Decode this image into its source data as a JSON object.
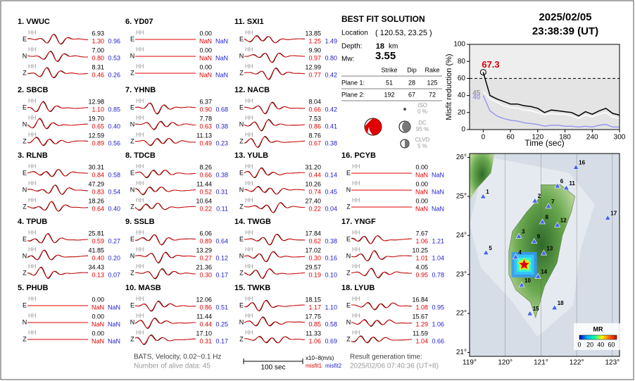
{
  "header": {
    "date": "2025/02/05",
    "time": "23:38:39  (UT)"
  },
  "channel": "HH",
  "components": [
    "E",
    "N",
    "Z"
  ],
  "stations": [
    {
      "title": "1.  VWUC",
      "rows": [
        [
          "6.93",
          "1.30",
          "0.96"
        ],
        [
          "7.00",
          "0.80",
          "0.53"
        ],
        [
          "8.31",
          "0.46",
          "0.26"
        ]
      ]
    },
    {
      "title": "2.  SBCB",
      "rows": [
        [
          "12.98",
          "1.10",
          "0.85"
        ],
        [
          "19.70",
          "0.65",
          "0.40"
        ],
        [
          "12.59",
          "0.89",
          "0.56"
        ]
      ]
    },
    {
      "title": "3.  RLNB",
      "rows": [
        [
          "30.31",
          "0.84",
          "0.58"
        ],
        [
          "47.29",
          "0.83",
          "0.54"
        ],
        [
          "18.26",
          "0.64",
          "0.40"
        ]
      ]
    },
    {
      "title": "4.  TPUB",
      "rows": [
        [
          "25.81",
          "0.59",
          "0.27"
        ],
        [
          "41.85",
          "0.40",
          "0.20"
        ],
        [
          "34.43",
          "0.13",
          "0.07"
        ]
      ]
    },
    {
      "title": "5.  PHUB",
      "rows": [
        [
          "0.00",
          "NaN",
          "NaN"
        ],
        [
          "0.00",
          "NaN",
          "NaN"
        ],
        [
          "0.00",
          "NaN",
          "NaN"
        ]
      ]
    },
    {
      "title": "6.  YD07",
      "rows": [
        [
          "0.00",
          "NaN",
          "NaN"
        ],
        [
          "0.00",
          "NaN",
          "NaN"
        ],
        [
          "0.00",
          "NaN",
          "NaN"
        ]
      ]
    },
    {
      "title": "7.  YHNB",
      "rows": [
        [
          "6.37",
          "0.90",
          "0.68"
        ],
        [
          "7.78",
          "0.63",
          "0.38"
        ],
        [
          "11.13",
          "0.49",
          "0.23"
        ]
      ]
    },
    {
      "title": "8.  TDCB",
      "rows": [
        [
          "8.26",
          "0.66",
          "0.38"
        ],
        [
          "11.44",
          "0.52",
          "0.31"
        ],
        [
          "10.64",
          "0.22",
          "0.11"
        ]
      ]
    },
    {
      "title": "9.  SSLB",
      "rows": [
        [
          "6.06",
          "0.89",
          "0.64"
        ],
        [
          "13.29",
          "0.27",
          "0.12"
        ],
        [
          "21.36",
          "0.30",
          "0.17"
        ]
      ]
    },
    {
      "title": "10. MASB",
      "rows": [
        [
          "12.06",
          "0.86",
          "0.51"
        ],
        [
          "11.44",
          "0.44",
          "0.25"
        ],
        [
          "17.10",
          "0.31",
          "0.17"
        ]
      ]
    },
    {
      "title": "11. SXI1",
      "rows": [
        [
          "13.85",
          "1.25",
          "1.49"
        ],
        [
          "9.90",
          "0.97",
          "0.80"
        ],
        [
          "12.99",
          "0.77",
          "0.42"
        ]
      ]
    },
    {
      "title": "12. NACB",
      "rows": [
        [
          "8.04",
          "0.66",
          "0.42"
        ],
        [
          "7.53",
          "0.86",
          "0.41"
        ],
        [
          "8.76",
          "0.67",
          "0.38"
        ]
      ]
    },
    {
      "title": "13. YULB",
      "rows": [
        [
          "31.20",
          "0.44",
          "0.14"
        ],
        [
          "10.26",
          "0.74",
          "0.45"
        ],
        [
          "27.40",
          "0.22",
          "0.04"
        ]
      ]
    },
    {
      "title": "14. TWGB",
      "rows": [
        [
          "17.84",
          "0.62",
          "0.38"
        ],
        [
          "17.02",
          "0.30",
          "0.16"
        ],
        [
          "29.57",
          "0.19",
          "0.10"
        ]
      ]
    },
    {
      "title": "15. TWKB",
      "rows": [
        [
          "18.15",
          "1.17",
          "1.10"
        ],
        [
          "17.75",
          "0.85",
          "0.58"
        ],
        [
          "11.33",
          "1.06",
          "0.69"
        ]
      ]
    },
    {
      "title": "16. PCYB",
      "rows": [
        [
          "0.00",
          "NaN",
          "NaN"
        ],
        [
          "0.00",
          "NaN",
          "NaN"
        ],
        [
          "0.00",
          "NaN",
          "NaN"
        ]
      ]
    },
    {
      "title": "17. YNGF",
      "rows": [
        [
          "7.67",
          "1.06",
          "1.21"
        ],
        [
          "10.25",
          "1.01",
          "1.04"
        ],
        [
          "4.05",
          "0.95",
          "0.78"
        ]
      ]
    },
    {
      "title": "18. LYUB",
      "rows": [
        [
          "16.84",
          "1.08",
          "0.95"
        ],
        [
          "15.67",
          "1.29",
          "1.06"
        ],
        [
          "11.59",
          "1.04",
          "0.66"
        ]
      ]
    }
  ],
  "solution": {
    "title": "BEST FIT SOLUTION",
    "location_label": "Location",
    "location": "( 120.53, 23.25 )",
    "depth_label": "Depth:",
    "depth": "18",
    "depth_unit": "km",
    "mw_label": "Mw:",
    "mw": "3.55",
    "columns": [
      "Strike",
      "Dip",
      "Rake"
    ],
    "planes": [
      {
        "label": "Plane 1:",
        "values": [
          "51",
          "28",
          "125"
        ]
      },
      {
        "label": "Plane 2:",
        "values": [
          "192",
          "67",
          "72"
        ]
      }
    ],
    "parts": [
      {
        "label": "ISO",
        "percent": "0 %"
      },
      {
        "label": "DC",
        "percent": "95 %"
      },
      {
        "label": "CLVD",
        "percent": "5 %"
      }
    ]
  },
  "chart_data": {
    "type": "line",
    "xlabel": "Time (sec)",
    "ylabel": "Misfit reduction (%)",
    "x": [
      0,
      15,
      30,
      45,
      60,
      75,
      90,
      105,
      120,
      135,
      150,
      165,
      180,
      195,
      210,
      225,
      240,
      255,
      270,
      285,
      300
    ],
    "series": [
      {
        "color": "#000000",
        "label_color": "#e00000",
        "start_label": "67.3",
        "values": [
          67.3,
          40,
          36,
          33,
          30,
          30,
          28,
          27,
          25,
          20,
          23,
          22,
          21,
          20,
          16,
          21,
          18,
          22,
          25,
          19,
          17
        ]
      },
      {
        "color": "#ffffff",
        "label_color": "#999999",
        "start_label": "45",
        "values": [
          45,
          36,
          32,
          28,
          26,
          25,
          23,
          22,
          20,
          17,
          19,
          18,
          18,
          16,
          13,
          17,
          15,
          18,
          20,
          15,
          13
        ]
      },
      {
        "color": "#9999ee",
        "label_color": "#9999ee",
        "start_label": "40",
        "values": [
          40,
          22,
          16,
          13,
          11,
          10,
          8,
          7,
          6,
          4,
          5,
          5,
          4,
          4,
          3,
          4,
          3,
          5,
          6,
          3,
          3
        ]
      }
    ],
    "xlim": [
      -30,
      300
    ],
    "xticks": [
      0,
      60,
      120,
      180,
      240,
      300
    ],
    "ylim": [
      0,
      100
    ],
    "yticks": [
      0,
      20,
      40,
      60,
      80,
      100
    ],
    "threshold": 60
  },
  "map": {
    "xlim": [
      119,
      123.2
    ],
    "ylim": [
      20.9,
      26.1
    ],
    "xticks": [
      {
        "value": 119,
        "label": "119°"
      },
      {
        "value": 120,
        "label": "120°"
      },
      {
        "value": 121,
        "label": "121°"
      },
      {
        "value": 122,
        "label": "122°"
      },
      {
        "value": 123,
        "label": "123°"
      }
    ],
    "yticks": [
      {
        "value": 21,
        "label": "21°"
      },
      {
        "value": 22,
        "label": "22°"
      },
      {
        "value": 23,
        "label": "23°"
      },
      {
        "value": 24,
        "label": "24°"
      },
      {
        "value": 25,
        "label": "25°"
      },
      {
        "value": 26,
        "label": "26°"
      }
    ],
    "epicenter": {
      "lon": 120.53,
      "lat": 23.25
    },
    "stations": [
      {
        "label": "1",
        "lon": 119.38,
        "lat": 25.0
      },
      {
        "label": "2",
        "lon": 120.83,
        "lat": 24.89
      },
      {
        "label": "3",
        "lon": 120.38,
        "lat": 23.98
      },
      {
        "label": "4",
        "lon": 120.29,
        "lat": 23.45
      },
      {
        "label": "5",
        "lon": 119.46,
        "lat": 23.56
      },
      {
        "label": "6",
        "lon": 121.46,
        "lat": 25.27
      },
      {
        "label": "7",
        "lon": 121.21,
        "lat": 24.75
      },
      {
        "label": "8",
        "lon": 121.04,
        "lat": 24.35
      },
      {
        "label": "9",
        "lon": 120.81,
        "lat": 23.85
      },
      {
        "label": "10",
        "lon": 120.46,
        "lat": 22.73
      },
      {
        "label": "11",
        "lon": 121.71,
        "lat": 25.22
      },
      {
        "label": "12",
        "lon": 121.46,
        "lat": 24.27
      },
      {
        "label": "13",
        "lon": 121.08,
        "lat": 23.55
      },
      {
        "label": "14",
        "lon": 120.92,
        "lat": 22.95
      },
      {
        "label": "15",
        "lon": 120.69,
        "lat": 22.0
      },
      {
        "label": "16",
        "lon": 121.98,
        "lat": 25.75
      },
      {
        "label": "17",
        "lon": 122.87,
        "lat": 24.45
      },
      {
        "label": "18",
        "lon": 121.38,
        "lat": 22.15
      }
    ],
    "colorbar": {
      "title": "MR",
      "ticks": [
        0,
        20,
        40,
        60
      ],
      "range": [
        0,
        70
      ]
    }
  },
  "footer": {
    "source": "BATS, Velocity, 0.02~0.1 Hz",
    "alive": "Number of alive data: 45",
    "scale": "100 sec",
    "units": "x10−8(m/s)",
    "misfit1": "misfit1",
    "misfit2": "misfit2",
    "gen_label": "Result generation time:",
    "gen_time": "2025/02/06 07:40:36 (UT+8)"
  }
}
